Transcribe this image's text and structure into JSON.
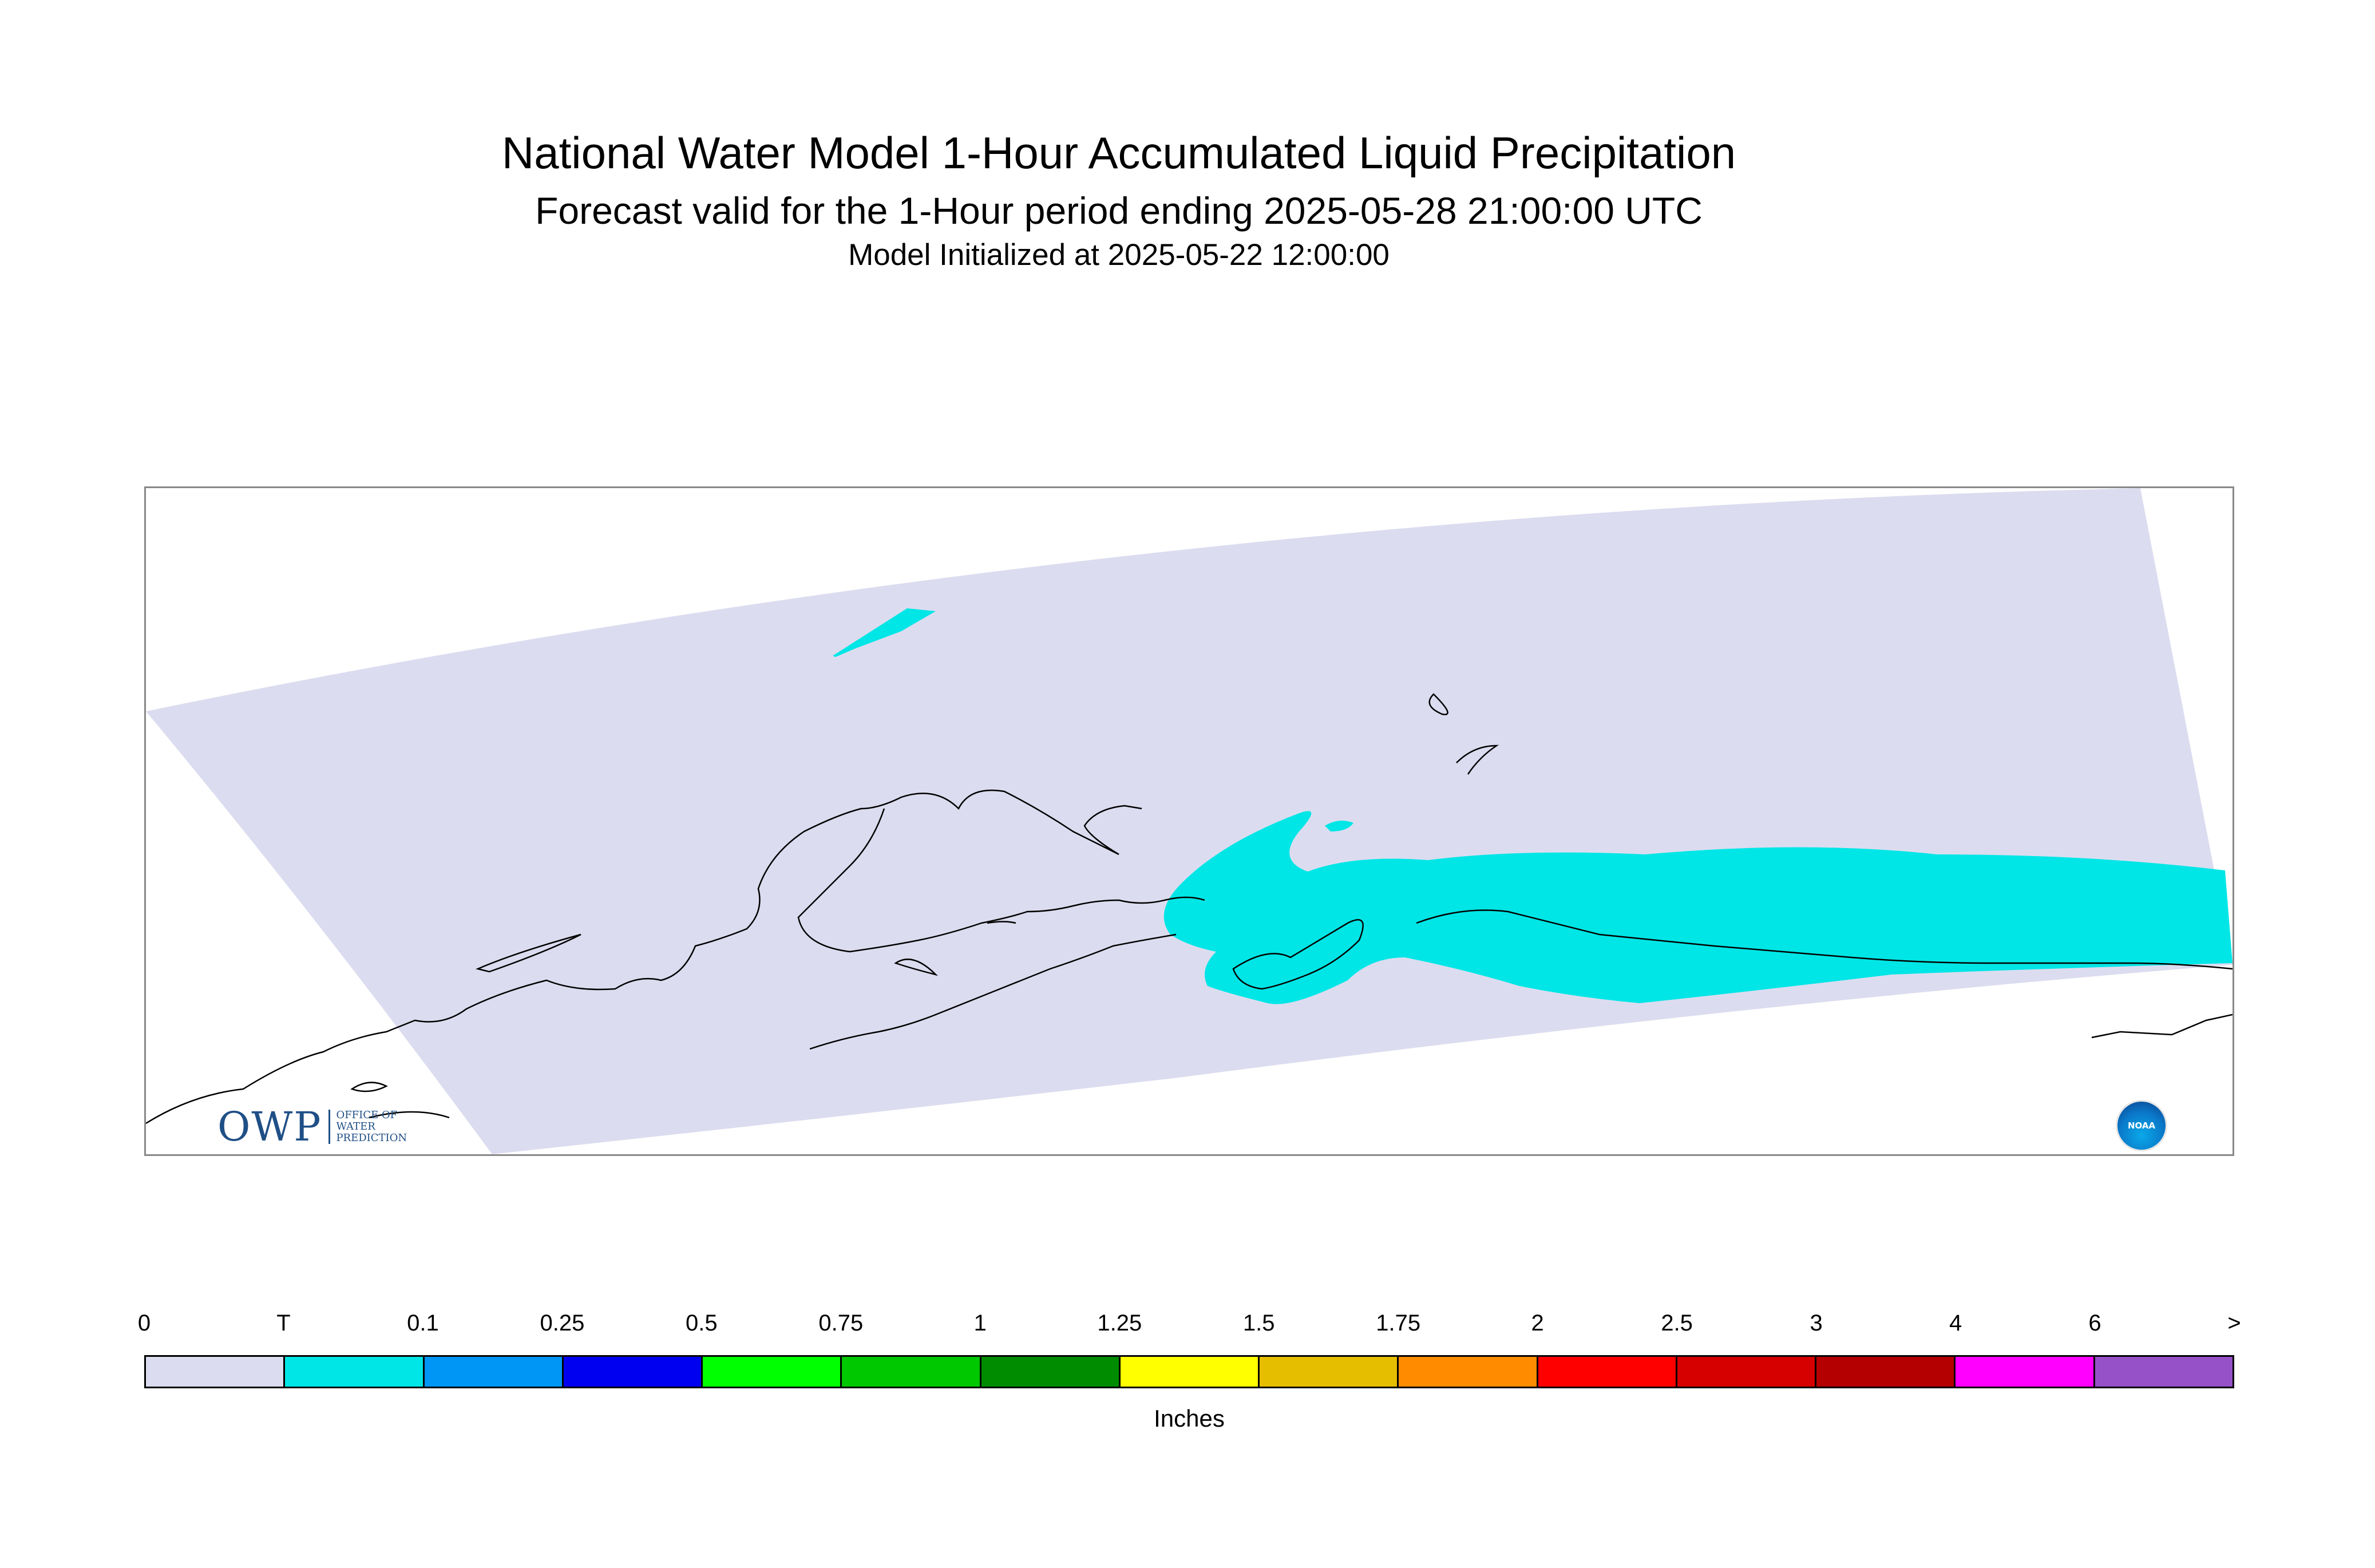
{
  "header": {
    "title": "National Water Model 1-Hour Accumulated Liquid Precipitation",
    "subtitle": "Forecast valid for the 1-Hour period ending 2025-05-28 21:00:00 UTC",
    "initialized": "Model Initialized at 2025-05-22 12:00:00"
  },
  "logos": {
    "owp": {
      "letters": "OWP",
      "line1": "Office of",
      "line2": "Water",
      "line3": "Prediction"
    },
    "noaa": {
      "text": "NOAA"
    }
  },
  "legend": {
    "units": "Inches",
    "tick_labels": [
      "0",
      "T",
      "0.1",
      "0.25",
      "0.5",
      "0.75",
      "1",
      "1.25",
      "1.5",
      "1.75",
      "2",
      "2.5",
      "3",
      "4",
      "6",
      ">"
    ],
    "colors": [
      "#dcdcf0",
      "#00e6e6",
      "#0096f5",
      "#0000f0",
      "#00ff00",
      "#00c800",
      "#008c00",
      "#ffff00",
      "#e6be00",
      "#ff8c00",
      "#ff0000",
      "#d70000",
      "#b40000",
      "#ff00ff",
      "#9650c8"
    ]
  },
  "map": {
    "domain_color": "#dcdcf0",
    "precip_color": "#00e6e6",
    "coastline_color": "#000000"
  }
}
